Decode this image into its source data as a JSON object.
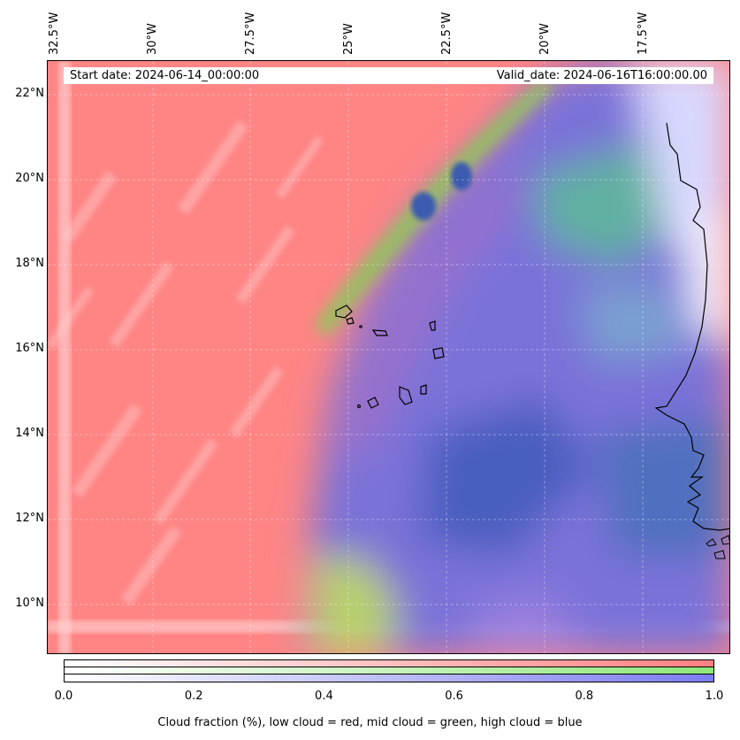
{
  "map": {
    "lon_ticks": [
      "32.5°W",
      "30°W",
      "27.5°W",
      "25°W",
      "22.5°W",
      "20°W",
      "17.5°W"
    ],
    "lat_ticks": [
      "22°N",
      "20°N",
      "18°N",
      "16°N",
      "14°N",
      "12°N",
      "10°N"
    ],
    "start_date": "Start date: 2024-06-14_00:00:00",
    "valid_date": "Valid_date: 2024-06-16T16:00:00.00"
  },
  "colorbar": {
    "ticks": [
      "0.0",
      "0.2",
      "0.4",
      "0.6",
      "0.8",
      "1.0"
    ],
    "label": "Cloud fraction (%), low cloud = red, mid cloud = green, high cloud = blue",
    "colors": {
      "low": "#ff8080",
      "mid": "#8ee87a",
      "high": "#7c7cf0"
    }
  }
}
